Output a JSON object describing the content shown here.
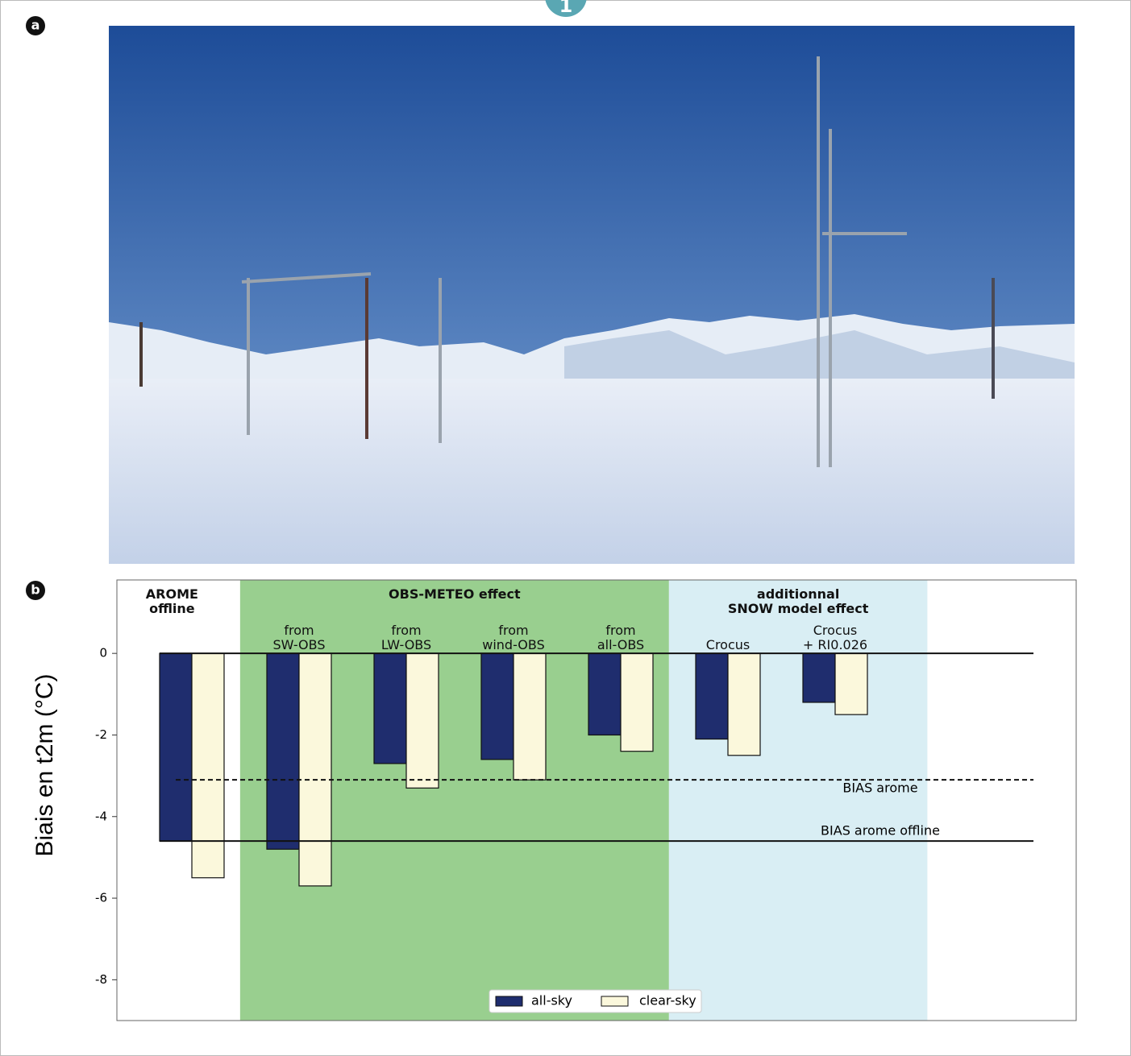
{
  "badge": "1",
  "panel_labels": [
    "a",
    "b"
  ],
  "chart_data": {
    "type": "bar",
    "y_label": "Biais en t2m (°C)",
    "categories": [
      null,
      "from\nSW-OBS",
      "from\nLW-OBS",
      "from\nwind-OBS",
      "from\nall-OBS",
      "Crocus",
      "Crocus\n+ RI0.026"
    ],
    "series": [
      {
        "name": "all-sky",
        "color": "#1f2d6e",
        "values": [
          -4.6,
          -4.8,
          -2.7,
          -2.6,
          -2.0,
          -2.1,
          -1.2
        ]
      },
      {
        "name": "clear-sky",
        "color": "#fbf8dc",
        "values": [
          -5.5,
          -5.7,
          -3.3,
          -3.1,
          -2.4,
          -2.5,
          -1.5
        ]
      }
    ],
    "regions": [
      {
        "label": "AROME\noffline",
        "color": "#ffffff"
      },
      {
        "label": "OBS-METEO effect",
        "color": "#99cf8f"
      },
      {
        "label": "additionnal\nSNOW model effect",
        "color": "#d9eef4"
      }
    ],
    "reference_lines": [
      {
        "value": 0,
        "style": "solid"
      },
      {
        "value": -3.1,
        "style": "dashed",
        "label": "BIAS arome"
      },
      {
        "value": -4.6,
        "style": "solid",
        "label": "BIAS arome offline"
      }
    ],
    "ylim": [
      -9.0,
      1.8
    ],
    "yticks": [
      0,
      -2,
      -4,
      -6,
      -8
    ],
    "legend": "lower center"
  }
}
